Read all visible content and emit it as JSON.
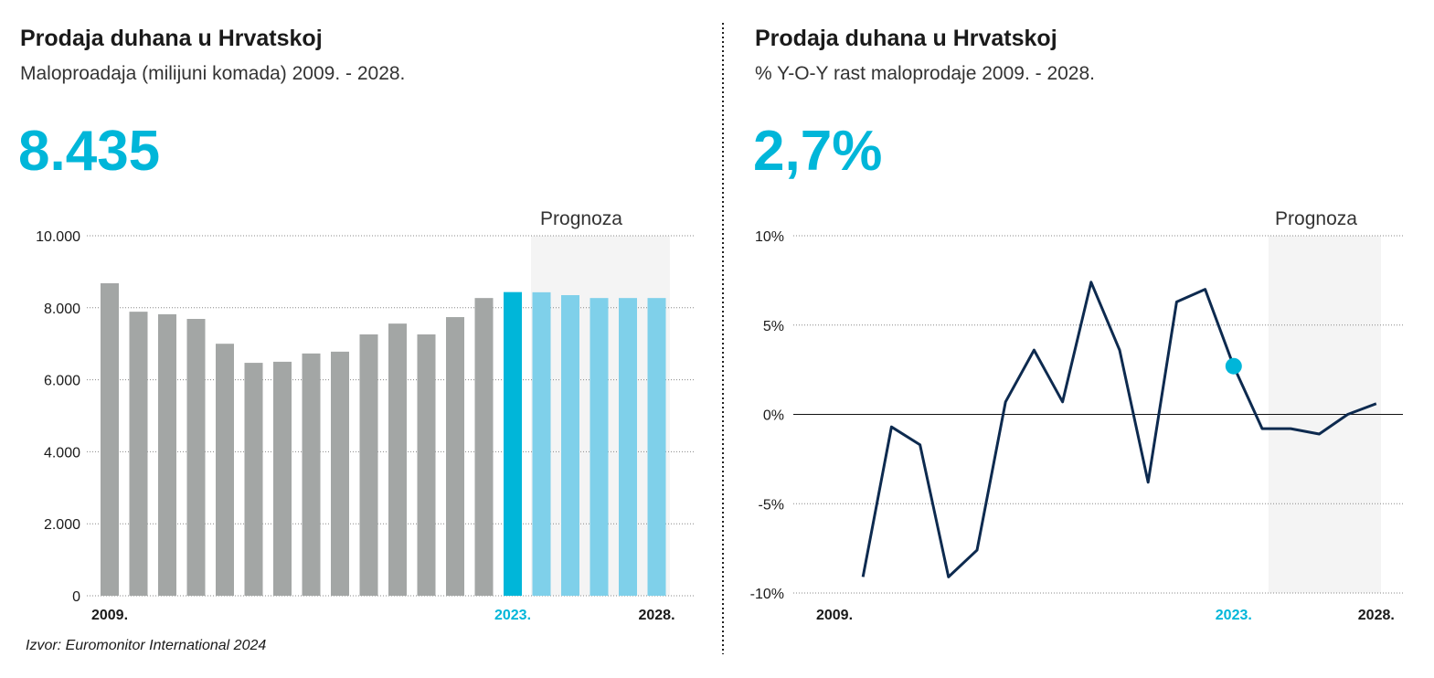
{
  "chart_data": [
    {
      "type": "bar",
      "title": "Prodaja duhana u Hrvatskoj",
      "subtitle": "Maloproadaja (milijuni komada) 2009. - 2028.",
      "headline": "8.435",
      "annotation": "Prognoza",
      "source": "Izvor: Euromonitor International 2024",
      "categories": [
        "2009.",
        null,
        null,
        null,
        null,
        null,
        null,
        null,
        null,
        null,
        null,
        null,
        null,
        null,
        "2023.",
        null,
        null,
        null,
        null,
        "2028."
      ],
      "values": [
        8680,
        7890,
        7820,
        7690,
        7000,
        6470,
        6500,
        6730,
        6780,
        7260,
        7560,
        7260,
        7740,
        8270,
        8435,
        8430,
        8350,
        8270,
        8270,
        8270
      ],
      "colors": [
        "#a3a6a5",
        "#a3a6a5",
        "#a3a6a5",
        "#a3a6a5",
        "#a3a6a5",
        "#a3a6a5",
        "#a3a6a5",
        "#a3a6a5",
        "#a3a6a5",
        "#a3a6a5",
        "#a3a6a5",
        "#a3a6a5",
        "#a3a6a5",
        "#a3a6a5",
        "#00b6d9",
        "#7fd0ea",
        "#7fd0ea",
        "#7fd0ea",
        "#7fd0ea",
        "#7fd0ea"
      ],
      "highlight": {
        "category": "2023.",
        "color": "#00b6d9"
      },
      "ylim": [
        0,
        10000
      ],
      "yticks": [
        0,
        {
          "value": 2000,
          "label": "2.000"
        },
        {
          "value": 4000,
          "label": "4.000"
        },
        {
          "value": 6000,
          "label": "6.000"
        },
        {
          "value": 8000,
          "label": "8.000"
        },
        {
          "value": 10000,
          "label": "10.000"
        }
      ],
      "grid": true
    },
    {
      "type": "line",
      "title": "Prodaja duhana u Hrvatskoj",
      "subtitle": "% Y-O-Y rast maloprodaje 2009. - 2028.",
      "headline": "2,7%",
      "annotation": "Prognoza",
      "categories": [
        "2009.",
        null,
        null,
        null,
        null,
        null,
        null,
        null,
        null,
        null,
        null,
        null,
        null,
        null,
        "2023.",
        null,
        null,
        null,
        null,
        "2028."
      ],
      "values": [
        null,
        -9.1,
        -0.7,
        -1.7,
        -9.1,
        -7.6,
        0.7,
        3.6,
        0.7,
        7.4,
        3.6,
        -3.8,
        6.3,
        7.0,
        2.7,
        -0.8,
        -0.8,
        -1.1,
        0.0,
        0.6
      ],
      "color": "#0d2a4f",
      "highlight": {
        "category": "2023.",
        "color": "#00b6d9"
      },
      "ylim": [
        -10,
        10
      ],
      "yticks": [
        {
          "value": -10,
          "label": "-10%"
        },
        {
          "value": -5,
          "label": "-5%"
        },
        {
          "value": 0,
          "label": "0%"
        },
        {
          "value": 5,
          "label": "5%"
        },
        {
          "value": 10,
          "label": "10%"
        }
      ],
      "grid": true
    }
  ]
}
